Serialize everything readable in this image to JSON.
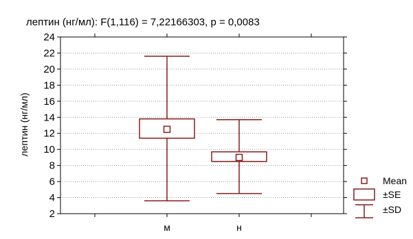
{
  "chart_data": {
    "type": "box",
    "title": "лептин (нг/мл):   F(1,116) = 7,22166303, p = 0,0083",
    "xlabel": "",
    "ylabel": "лептин (нг/мл)",
    "ylim": [
      2,
      24
    ],
    "yticks": [
      2,
      4,
      6,
      8,
      10,
      12,
      14,
      16,
      18,
      20,
      22,
      24
    ],
    "grid": true,
    "legend_position": "bottom-right",
    "categories": [
      "м",
      "н"
    ],
    "series": [
      {
        "category": "м",
        "mean": 12.5,
        "se_low": 11.4,
        "se_high": 13.8,
        "sd_low": 3.6,
        "sd_high": 21.6
      },
      {
        "category": "н",
        "mean": 9.0,
        "se_low": 8.5,
        "se_high": 9.7,
        "sd_low": 4.5,
        "sd_high": 13.7
      }
    ],
    "legend": [
      {
        "key": "mean",
        "label": "Mean"
      },
      {
        "key": "se",
        "label": "±SE"
      },
      {
        "key": "sd",
        "label": "±SD"
      }
    ],
    "colors": {
      "box": "#8b1a1a",
      "axis": "#000000",
      "grid": "#9a9a9a",
      "frame_background": "#e8e8e8",
      "plot_background": "#ffffff"
    }
  }
}
